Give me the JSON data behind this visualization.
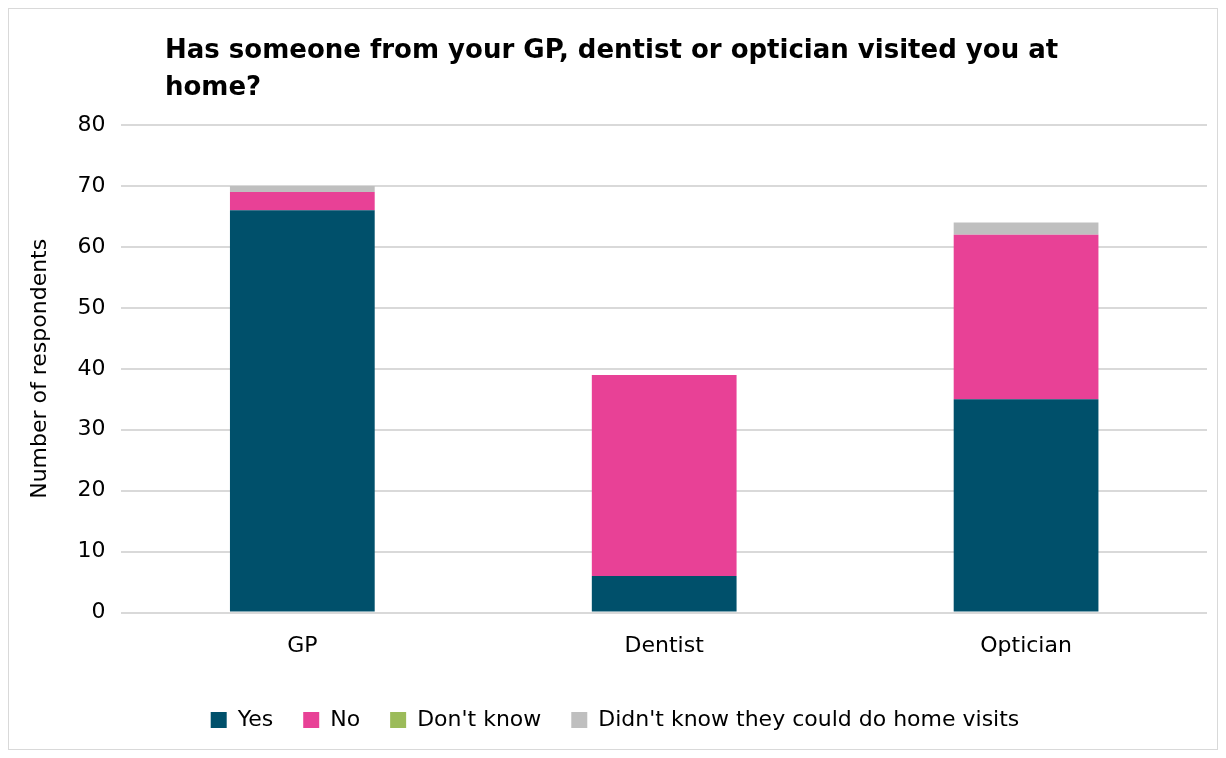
{
  "chart_data": {
    "type": "bar",
    "title": "Has someone from your GP, dentist or optician visited you at home?",
    "ylabel": "Number of respondents",
    "categories": [
      "GP",
      "Dentist",
      "Optician"
    ],
    "series": [
      {
        "name": "Yes",
        "color": "#00506b",
        "values": [
          66,
          6,
          35
        ]
      },
      {
        "name": "No",
        "color": "#e84196",
        "values": [
          3,
          33,
          27
        ]
      },
      {
        "name": "Don't know",
        "color": "#9bbb59",
        "values": [
          0,
          0,
          0
        ]
      },
      {
        "name": "Didn't know they could do home visits",
        "color": "#bfbfbf",
        "values": [
          1,
          0,
          2
        ]
      }
    ],
    "stacked": true,
    "ylim": [
      0,
      80
    ],
    "yticks": [
      0,
      10,
      20,
      30,
      40,
      50,
      60,
      70,
      80
    ],
    "grid": "y",
    "legend": "bottom"
  }
}
